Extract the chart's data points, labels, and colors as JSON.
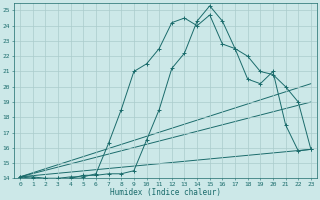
{
  "xlabel": "Humidex (Indice chaleur)",
  "bg_color": "#cce8e8",
  "grid_color": "#aacccc",
  "line_color": "#1a6b6b",
  "xlim": [
    -0.5,
    23.5
  ],
  "ylim": [
    14,
    25.5
  ],
  "xticks": [
    0,
    1,
    2,
    3,
    4,
    5,
    6,
    7,
    8,
    9,
    10,
    11,
    12,
    13,
    14,
    15,
    16,
    17,
    18,
    19,
    20,
    21,
    22,
    23
  ],
  "yticks": [
    14,
    15,
    16,
    17,
    18,
    19,
    20,
    21,
    22,
    23,
    24,
    25
  ],
  "curve1_x": [
    0,
    1,
    2,
    3,
    4,
    5,
    6,
    7,
    8,
    9,
    10,
    11,
    12,
    13,
    14,
    15,
    16,
    17,
    18,
    19,
    20,
    21,
    22,
    23
  ],
  "curve1_y": [
    14.1,
    14.1,
    14.0,
    14.0,
    14.1,
    14.1,
    14.3,
    16.3,
    18.5,
    21.0,
    21.5,
    22.5,
    24.2,
    24.5,
    24.0,
    24.7,
    22.8,
    22.5,
    22.0,
    21.0,
    20.8,
    20.0,
    19.0,
    15.9
  ],
  "curve2_x": [
    0,
    1,
    2,
    3,
    4,
    5,
    6,
    7,
    8,
    9,
    10,
    11,
    12,
    13,
    14,
    15,
    16,
    17,
    18,
    19,
    20,
    21,
    22,
    23
  ],
  "curve2_y": [
    14.1,
    14.0,
    14.0,
    14.0,
    14.0,
    14.2,
    14.2,
    14.3,
    14.3,
    14.5,
    16.5,
    18.5,
    21.2,
    22.2,
    24.3,
    25.3,
    24.3,
    22.5,
    20.5,
    20.2,
    21.0,
    17.5,
    15.8,
    15.9
  ],
  "line1_x": [
    0,
    23
  ],
  "line1_y": [
    14.1,
    20.2
  ],
  "line2_x": [
    0,
    23
  ],
  "line2_y": [
    14.1,
    15.9
  ],
  "line3_x": [
    0,
    23
  ],
  "line3_y": [
    14.1,
    19.0
  ]
}
